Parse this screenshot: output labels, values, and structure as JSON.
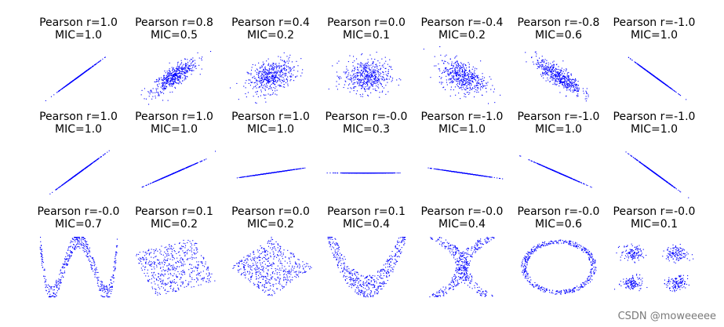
{
  "watermark": "CSDN @moweeeee",
  "point_color": "#0000ff",
  "chart_data": {
    "type": "scatter",
    "grid": false,
    "axes_visible": false,
    "rows": [
      {
        "panels": [
          {
            "title_line1": "Pearson r=1.0",
            "title_line2": "MIC=1.0",
            "pattern": "linear",
            "r": 1.0,
            "slope": 1.0
          },
          {
            "title_line1": "Pearson r=0.8",
            "title_line2": "MIC=0.5",
            "pattern": "gaussian",
            "r": 0.8
          },
          {
            "title_line1": "Pearson r=0.4",
            "title_line2": "MIC=0.2",
            "pattern": "gaussian",
            "r": 0.4
          },
          {
            "title_line1": "Pearson r=0.0",
            "title_line2": "MIC=0.1",
            "pattern": "gaussian",
            "r": 0.0
          },
          {
            "title_line1": "Pearson r=-0.4",
            "title_line2": "MIC=0.2",
            "pattern": "gaussian",
            "r": -0.4
          },
          {
            "title_line1": "Pearson r=-0.8",
            "title_line2": "MIC=0.6",
            "pattern": "gaussian",
            "r": -0.8
          },
          {
            "title_line1": "Pearson r=-1.0",
            "title_line2": "MIC=1.0",
            "pattern": "linear",
            "r": -1.0,
            "slope": -1.0
          }
        ]
      },
      {
        "panels": [
          {
            "title_line1": "Pearson r=1.0",
            "title_line2": "MIC=1.0",
            "pattern": "linear",
            "slope": 1.0
          },
          {
            "title_line1": "Pearson r=1.0",
            "title_line2": "MIC=1.0",
            "pattern": "linear",
            "slope": 0.6
          },
          {
            "title_line1": "Pearson r=1.0",
            "title_line2": "MIC=1.0",
            "pattern": "linear",
            "slope": 0.2
          },
          {
            "title_line1": "Pearson r=-0.0",
            "title_line2": "MIC=0.3",
            "pattern": "linear",
            "slope": 0.0
          },
          {
            "title_line1": "Pearson r=-1.0",
            "title_line2": "MIC=1.0",
            "pattern": "linear",
            "slope": -0.2
          },
          {
            "title_line1": "Pearson r=-1.0",
            "title_line2": "MIC=1.0",
            "pattern": "linear",
            "slope": -0.6
          },
          {
            "title_line1": "Pearson r=-1.0",
            "title_line2": "MIC=1.0",
            "pattern": "linear",
            "slope": -1.0
          }
        ]
      },
      {
        "panels": [
          {
            "title_line1": "Pearson r=-0.0",
            "title_line2": "MIC=0.7",
            "pattern": "w_shape"
          },
          {
            "title_line1": "Pearson r=0.1",
            "title_line2": "MIC=0.2",
            "pattern": "rotated_square",
            "angle_deg": 20
          },
          {
            "title_line1": "Pearson r=0.0",
            "title_line2": "MIC=0.2",
            "pattern": "rotated_square",
            "angle_deg": 45
          },
          {
            "title_line1": "Pearson r=0.1",
            "title_line2": "MIC=0.4",
            "pattern": "parabola"
          },
          {
            "title_line1": "Pearson r=-0.0",
            "title_line2": "MIC=0.4",
            "pattern": "x_shape"
          },
          {
            "title_line1": "Pearson r=-0.0",
            "title_line2": "MIC=0.6",
            "pattern": "circle"
          },
          {
            "title_line1": "Pearson r=-0.0",
            "title_line2": "MIC=0.1",
            "pattern": "four_clusters"
          }
        ]
      }
    ]
  }
}
